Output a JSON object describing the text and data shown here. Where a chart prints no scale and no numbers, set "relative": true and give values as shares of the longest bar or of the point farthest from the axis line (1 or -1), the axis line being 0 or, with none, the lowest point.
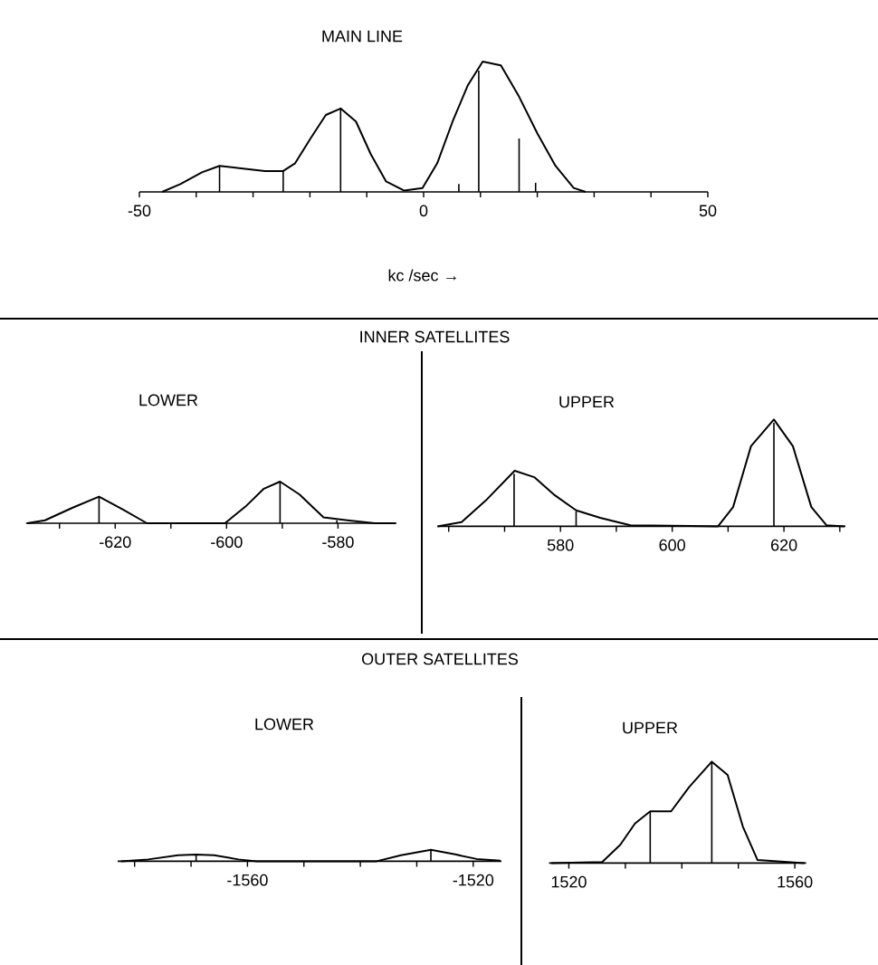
{
  "chart_data": [
    {
      "type": "line",
      "title": "MAIN LINE",
      "xlabel": "kc /sec →",
      "relative": true,
      "xlim": [
        -50,
        50
      ],
      "xticks": [
        -50,
        {
          "value": -40,
          "label": null
        },
        {
          "value": -30,
          "label": null
        },
        {
          "value": -20,
          "label": null
        },
        {
          "value": -10,
          "label": null
        },
        0,
        {
          "value": 10,
          "label": null
        },
        {
          "value": 20,
          "label": null
        },
        {
          "value": 30,
          "label": null
        },
        {
          "value": 40,
          "label": null
        },
        50
      ],
      "series": [
        {
          "color": "#000000",
          "x": [
            -46,
            -42.8,
            -39,
            -35.9,
            -32.1,
            -27.9,
            -24.7,
            -22.6,
            -19.9,
            -17.2,
            -14.6,
            -11.9,
            -9.3,
            -6.6,
            -3.4,
            -0.2,
            2.4,
            5.1,
            7.8,
            10.4,
            13.6,
            16.8,
            20,
            23.2,
            26.4,
            28.5
          ],
          "values": [
            0,
            0.06,
            0.15,
            0.2,
            0.18,
            0.16,
            0.16,
            0.22,
            0.41,
            0.59,
            0.64,
            0.54,
            0.29,
            0.08,
            0.01,
            0.03,
            0.22,
            0.54,
            0.82,
            1.0,
            0.97,
            0.73,
            0.45,
            0.2,
            0.03,
            0
          ]
        },
        {
          "type": "bar",
          "color": "#000000",
          "x": [
            -35.9,
            -24.7,
            -14.6,
            6.2,
            9.7,
            16.8,
            19.7
          ],
          "values": [
            0.2,
            0.16,
            0.64,
            0.06,
            0.93,
            0.41,
            0.07
          ]
        }
      ]
    },
    {
      "type": "line",
      "title": "INNER SATELLITES",
      "subtitle": "LOWER",
      "relative": true,
      "xlim": [
        -636,
        -569.5
      ],
      "xticks": [
        {
          "value": -630,
          "label": null
        },
        -620,
        {
          "value": -610,
          "label": null
        },
        -600,
        {
          "value": -590,
          "label": null
        },
        -580
      ],
      "series": [
        {
          "color": "#000000",
          "x": [
            -635.8,
            -632.6,
            -627.7,
            -622.9,
            -618.6,
            -614.3,
            -600.3,
            -596.6,
            -593.3,
            -590.4,
            -586.9,
            -582.6,
            -578.3,
            -573.4,
            -569.7
          ],
          "values": [
            0,
            0.07,
            0.37,
            0.64,
            0.33,
            0,
            0,
            0.4,
            0.83,
            1.0,
            0.69,
            0.14,
            0.07,
            0,
            0
          ]
        },
        {
          "type": "bar",
          "color": "#000000",
          "x": [
            -622.9,
            -590.4,
            -580.2
          ],
          "values": [
            0.64,
            1.0,
            0.07
          ]
        }
      ]
    },
    {
      "type": "line",
      "subtitle": "UPPER",
      "relative": true,
      "xlim": [
        558,
        631
      ],
      "xticks": [
        {
          "value": 560,
          "label": null
        },
        {
          "value": 570,
          "label": null
        },
        580,
        {
          "value": 590,
          "label": null
        },
        600,
        {
          "value": 610,
          "label": null
        },
        620,
        {
          "value": 630,
          "label": null
        }
      ],
      "series": [
        {
          "color": "#000000",
          "x": [
            558,
            562.3,
            566.6,
            571.8,
            575.3,
            579,
            582.8,
            587.1,
            592.5,
            608.2,
            610.9,
            614.1,
            618.2,
            621.6,
            624.9,
            627.6,
            630.8
          ],
          "values": [
            0,
            0.04,
            0.24,
            0.52,
            0.46,
            0.29,
            0.15,
            0.08,
            0.01,
            0,
            0.18,
            0.75,
            1.0,
            0.75,
            0.18,
            0.01,
            0
          ]
        },
        {
          "type": "bar",
          "color": "#000000",
          "x": [
            571.7,
            582.8,
            618.2
          ],
          "values": [
            0.49,
            0.14,
            0.97
          ]
        }
      ]
    },
    {
      "type": "line",
      "title": "OUTER SATELLITES",
      "subtitle": "LOWER",
      "relative": true,
      "xlim": [
        -1583,
        -1515
      ],
      "xticks": [
        {
          "value": -1580,
          "label": null
        },
        {
          "value": -1570,
          "label": null
        },
        -1560,
        {
          "value": -1550,
          "label": null
        },
        {
          "value": -1540,
          "label": null
        },
        {
          "value": -1530,
          "label": null
        },
        -1520
      ],
      "series": [
        {
          "color": "#000000",
          "x": [
            -1582.4,
            -1577.6,
            -1572.3,
            -1569.1,
            -1565.9,
            -1561.6,
            -1558.4,
            -1537.1,
            -1532.8,
            -1527.5,
            -1523.2,
            -1519.4,
            -1515.2
          ],
          "values": [
            0,
            0.16,
            0.53,
            0.58,
            0.53,
            0.16,
            0,
            0,
            0.53,
            1.0,
            0.6,
            0.2,
            0.05
          ]
        },
        {
          "type": "bar",
          "color": "#000000",
          "x": [
            -1569.1,
            -1527.5
          ],
          "values": [
            0.58,
            1.0
          ]
        }
      ]
    },
    {
      "type": "line",
      "subtitle": "UPPER",
      "relative": true,
      "xlim": [
        1516.5,
        1562
      ],
      "xticks": [
        1520,
        {
          "value": 1530,
          "label": null
        },
        {
          "value": 1540,
          "label": null
        },
        {
          "value": 1550,
          "label": null
        },
        1560
      ],
      "series": [
        {
          "color": "#000000",
          "x": [
            1516.9,
            1525.9,
            1529.1,
            1531.7,
            1534.4,
            1538.1,
            1541.3,
            1545.3,
            1548.1,
            1550.8,
            1553.4,
            1561.7
          ],
          "values": [
            0,
            0.01,
            0.18,
            0.39,
            0.51,
            0.51,
            0.75,
            1.0,
            0.87,
            0.36,
            0.03,
            0
          ]
        },
        {
          "type": "bar",
          "color": "#000000",
          "x": [
            1534.4,
            1545.3
          ],
          "values": [
            0.51,
            0.99
          ]
        }
      ]
    }
  ]
}
